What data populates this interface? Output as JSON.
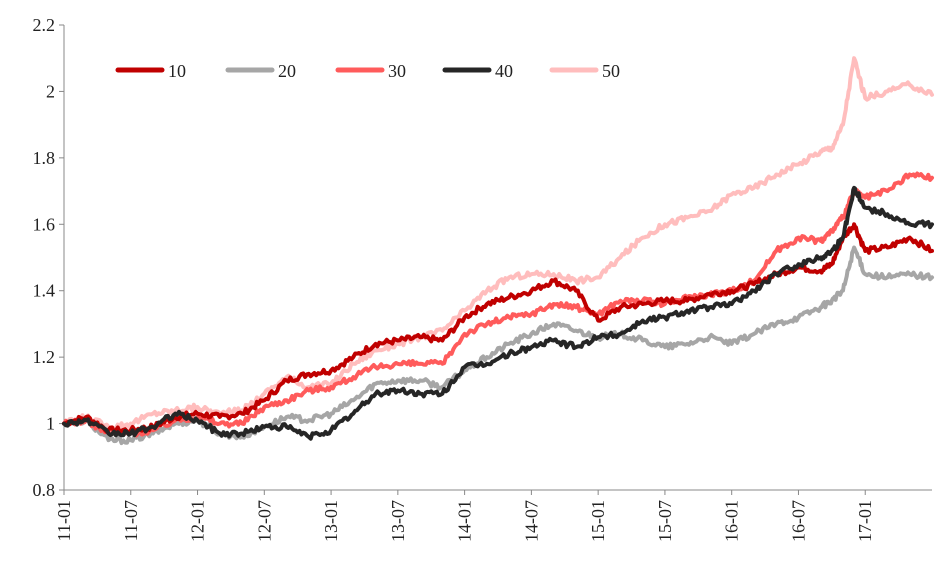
{
  "chart_data": {
    "type": "line",
    "title": "",
    "xlabel": "",
    "ylabel": "",
    "ylim": [
      0.8,
      2.2
    ],
    "y_ticks": [
      0.8,
      1,
      1.2,
      1.4,
      1.6,
      1.8,
      2,
      2.2
    ],
    "y_tick_labels": [
      "0.8",
      "1",
      "1.2",
      "1.4",
      "1.6",
      "1.8",
      "2",
      "2.2"
    ],
    "x_ticks": [
      "11-01",
      "11-07",
      "12-01",
      "12-07",
      "13-01",
      "13-07",
      "14-01",
      "14-07",
      "15-01",
      "15-07",
      "16-01",
      "16-07",
      "17-01"
    ],
    "x_range": [
      "2011-01",
      "2017-07"
    ],
    "grid": false,
    "legend_position": "top-left",
    "x": [
      "2011-01",
      "2011-03",
      "2011-05",
      "2011-07",
      "2011-09",
      "2011-11",
      "2012-01",
      "2012-03",
      "2012-05",
      "2012-07",
      "2012-09",
      "2012-11",
      "2013-01",
      "2013-03",
      "2013-05",
      "2013-07",
      "2013-09",
      "2013-11",
      "2014-01",
      "2014-03",
      "2014-05",
      "2014-07",
      "2014-09",
      "2014-11",
      "2015-01",
      "2015-03",
      "2015-05",
      "2015-07",
      "2015-09",
      "2015-11",
      "2016-01",
      "2016-03",
      "2016-05",
      "2016-07",
      "2016-09",
      "2016-10",
      "2016-11",
      "2016-12",
      "2017-01",
      "2017-03",
      "2017-05",
      "2017-07"
    ],
    "series": [
      {
        "name": "10",
        "color": "#c00000",
        "values": [
          1.0,
          1.02,
          0.98,
          0.98,
          0.99,
          1.02,
          1.03,
          1.02,
          1.03,
          1.07,
          1.13,
          1.15,
          1.16,
          1.2,
          1.24,
          1.25,
          1.26,
          1.25,
          1.32,
          1.36,
          1.38,
          1.4,
          1.43,
          1.4,
          1.31,
          1.35,
          1.36,
          1.37,
          1.37,
          1.39,
          1.4,
          1.42,
          1.45,
          1.47,
          1.46,
          1.48,
          1.56,
          1.6,
          1.52,
          1.53,
          1.56,
          1.52
        ]
      },
      {
        "name": "20",
        "color": "#a6a6a6",
        "values": [
          1.0,
          1.01,
          0.95,
          0.95,
          0.97,
          1.0,
          1.01,
          0.97,
          0.96,
          0.99,
          1.02,
          1.01,
          1.03,
          1.07,
          1.12,
          1.13,
          1.13,
          1.11,
          1.16,
          1.2,
          1.24,
          1.27,
          1.3,
          1.28,
          1.26,
          1.27,
          1.25,
          1.23,
          1.24,
          1.26,
          1.24,
          1.27,
          1.3,
          1.32,
          1.35,
          1.37,
          1.4,
          1.53,
          1.45,
          1.44,
          1.45,
          1.44
        ]
      },
      {
        "name": "30",
        "color": "#ff5b5b",
        "values": [
          1.0,
          1.01,
          0.97,
          0.97,
          0.98,
          1.01,
          1.02,
          1.0,
          1.0,
          1.05,
          1.07,
          1.1,
          1.11,
          1.14,
          1.17,
          1.18,
          1.18,
          1.18,
          1.27,
          1.3,
          1.32,
          1.33,
          1.36,
          1.35,
          1.33,
          1.37,
          1.37,
          1.36,
          1.38,
          1.39,
          1.4,
          1.43,
          1.52,
          1.56,
          1.55,
          1.58,
          1.62,
          1.7,
          1.68,
          1.7,
          1.75,
          1.74
        ]
      },
      {
        "name": "40",
        "color": "#262626",
        "values": [
          1.0,
          1.01,
          0.97,
          0.97,
          0.99,
          1.03,
          1.01,
          0.97,
          0.97,
          0.99,
          0.99,
          0.96,
          0.98,
          1.03,
          1.09,
          1.1,
          1.09,
          1.09,
          1.17,
          1.18,
          1.21,
          1.23,
          1.25,
          1.23,
          1.26,
          1.27,
          1.31,
          1.32,
          1.34,
          1.35,
          1.36,
          1.4,
          1.45,
          1.48,
          1.5,
          1.52,
          1.56,
          1.71,
          1.65,
          1.63,
          1.6,
          1.6
        ]
      },
      {
        "name": "50",
        "color": "#ffbdbd",
        "values": [
          1.0,
          1.02,
          0.99,
          1.0,
          1.03,
          1.04,
          1.05,
          1.03,
          1.04,
          1.09,
          1.14,
          1.11,
          1.12,
          1.18,
          1.22,
          1.24,
          1.26,
          1.28,
          1.34,
          1.4,
          1.44,
          1.45,
          1.45,
          1.43,
          1.44,
          1.5,
          1.56,
          1.6,
          1.62,
          1.64,
          1.69,
          1.71,
          1.75,
          1.78,
          1.82,
          1.83,
          1.9,
          2.1,
          1.98,
          2.0,
          2.02,
          1.99
        ]
      }
    ]
  }
}
